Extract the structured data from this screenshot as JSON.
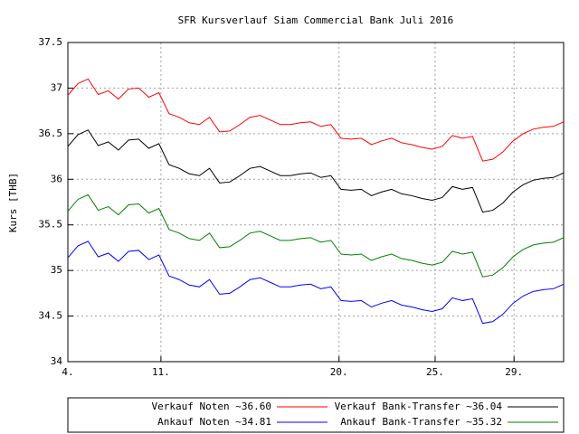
{
  "chart_data": {
    "type": "line",
    "title": "SFR Kursverlauf Siam Commercial Bank Juli 2016",
    "y_label": "Kurs [THB]",
    "x": [
      0,
      1,
      2,
      3,
      4,
      5,
      6,
      7,
      8,
      9,
      10,
      11,
      12,
      13,
      14,
      15,
      16,
      17,
      18,
      19,
      20,
      21,
      22,
      23,
      24,
      25,
      26,
      27,
      28,
      29,
      30,
      31,
      32,
      33,
      34,
      35,
      36,
      37,
      38,
      39,
      40,
      41,
      42,
      43,
      44,
      45,
      46,
      47,
      48,
      49
    ],
    "xlim": [
      0,
      49
    ],
    "xticks": [
      {
        "value": 0,
        "label": "4."
      },
      {
        "value": 9.2,
        "label": "11."
      },
      {
        "value": 26.8,
        "label": "20."
      },
      {
        "value": 36.3,
        "label": "25."
      },
      {
        "value": 44.1,
        "label": "29."
      }
    ],
    "ylim": [
      34,
      37.5
    ],
    "yticks": [
      34,
      34.5,
      35,
      35.5,
      36,
      36.5,
      37,
      37.5
    ],
    "grid": true,
    "legend": "bottom",
    "series": [
      {
        "name": "Verkauf Noten ~36.60",
        "color": "#ff0000",
        "values": [
          36.92,
          37.05,
          37.1,
          36.93,
          36.97,
          36.88,
          36.99,
          37.0,
          36.9,
          36.95,
          36.72,
          36.68,
          36.62,
          36.6,
          36.68,
          36.52,
          36.53,
          36.6,
          36.68,
          36.7,
          36.65,
          36.6,
          36.6,
          36.62,
          36.63,
          36.58,
          36.6,
          36.45,
          36.44,
          36.45,
          36.38,
          36.42,
          36.45,
          36.4,
          36.38,
          36.35,
          36.33,
          36.36,
          36.48,
          36.45,
          36.47,
          36.2,
          36.22,
          36.3,
          36.42,
          36.5,
          36.55,
          36.57,
          36.58,
          36.63
        ]
      },
      {
        "name": "Verkauf Bank-Transfer ~36.04",
        "color": "#000000",
        "values": [
          36.36,
          36.49,
          36.54,
          36.37,
          36.41,
          36.32,
          36.43,
          36.44,
          36.34,
          36.39,
          36.16,
          36.12,
          36.06,
          36.04,
          36.12,
          35.96,
          35.97,
          36.04,
          36.12,
          36.14,
          36.09,
          36.04,
          36.04,
          36.06,
          36.07,
          36.02,
          36.04,
          35.89,
          35.88,
          35.89,
          35.82,
          35.86,
          35.89,
          35.84,
          35.82,
          35.79,
          35.77,
          35.8,
          35.92,
          35.89,
          35.91,
          35.64,
          35.66,
          35.74,
          35.86,
          35.94,
          35.99,
          36.01,
          36.02,
          36.07
        ]
      },
      {
        "name": "Ankauf Noten ~34.81",
        "color": "#0000ff",
        "values": [
          35.14,
          35.27,
          35.32,
          35.15,
          35.19,
          35.1,
          35.21,
          35.22,
          35.12,
          35.17,
          34.94,
          34.9,
          34.84,
          34.82,
          34.9,
          34.74,
          34.75,
          34.82,
          34.9,
          34.92,
          34.87,
          34.82,
          34.82,
          34.84,
          34.85,
          34.8,
          34.82,
          34.67,
          34.66,
          34.67,
          34.6,
          34.64,
          34.67,
          34.62,
          34.6,
          34.57,
          34.55,
          34.58,
          34.7,
          34.67,
          34.69,
          34.42,
          34.44,
          34.52,
          34.64,
          34.72,
          34.77,
          34.79,
          34.8,
          34.85
        ]
      },
      {
        "name": "Ankauf Bank-Transfer ~35.32",
        "color": "#008000",
        "values": [
          35.65,
          35.78,
          35.83,
          35.66,
          35.7,
          35.61,
          35.72,
          35.73,
          35.63,
          35.68,
          35.45,
          35.41,
          35.35,
          35.33,
          35.41,
          35.25,
          35.26,
          35.33,
          35.41,
          35.43,
          35.38,
          35.33,
          35.33,
          35.35,
          35.36,
          35.31,
          35.33,
          35.18,
          35.17,
          35.18,
          35.11,
          35.15,
          35.18,
          35.13,
          35.11,
          35.08,
          35.06,
          35.09,
          35.21,
          35.18,
          35.2,
          34.93,
          34.95,
          35.03,
          35.15,
          35.23,
          35.28,
          35.3,
          35.31,
          35.36
        ]
      }
    ]
  }
}
